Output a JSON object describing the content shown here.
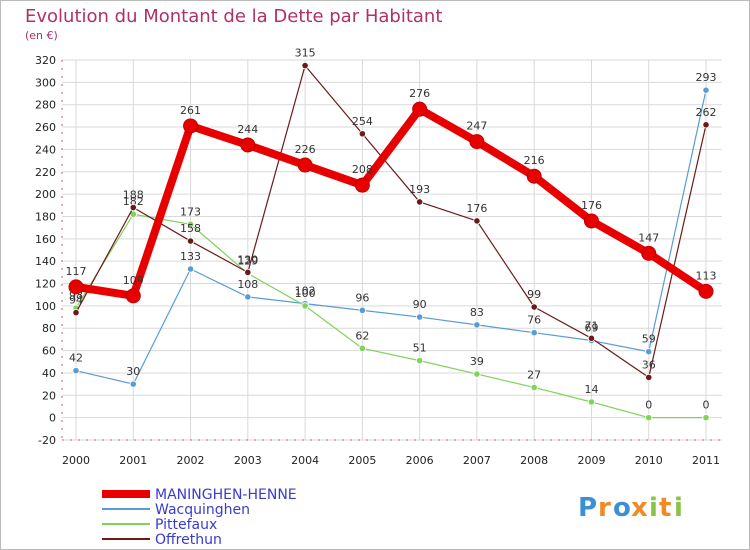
{
  "chart_data": {
    "type": "line",
    "title": "Evolution du Montant de la Dette par Habitant",
    "subtitle": "(en €)",
    "categories": [
      "2000",
      "2001",
      "2002",
      "2003",
      "2004",
      "2005",
      "2006",
      "2007",
      "2008",
      "2009",
      "2010",
      "2011"
    ],
    "ylim": [
      -20,
      320
    ],
    "yticks": [
      -20,
      0,
      20,
      40,
      60,
      80,
      100,
      120,
      140,
      160,
      180,
      200,
      220,
      240,
      260,
      280,
      300,
      320
    ],
    "grid": true,
    "series": [
      {
        "name": "MANINGHEN-HENNE",
        "color": "#e80000",
        "values": [
          117,
          109,
          261,
          244,
          226,
          208,
          276,
          247,
          216,
          176,
          147,
          113
        ]
      },
      {
        "name": "Wacquinghen",
        "color": "#5b9bd5",
        "values": [
          42,
          30,
          133,
          108,
          102,
          96,
          90,
          83,
          76,
          69,
          59,
          293
        ]
      },
      {
        "name": "Pittefaux",
        "color": "#7fd35a",
        "values": [
          98,
          182,
          173,
          129,
          100,
          62,
          51,
          39,
          27,
          14,
          0,
          0
        ]
      },
      {
        "name": "Offrethun",
        "color": "#6b1a1a",
        "values": [
          94,
          188,
          158,
          130,
          315,
          254,
          193,
          176,
          99,
          71,
          36,
          262
        ]
      }
    ]
  },
  "brand": {
    "letters": [
      "P",
      "r",
      "o",
      "x",
      "i",
      "t",
      "i"
    ]
  }
}
